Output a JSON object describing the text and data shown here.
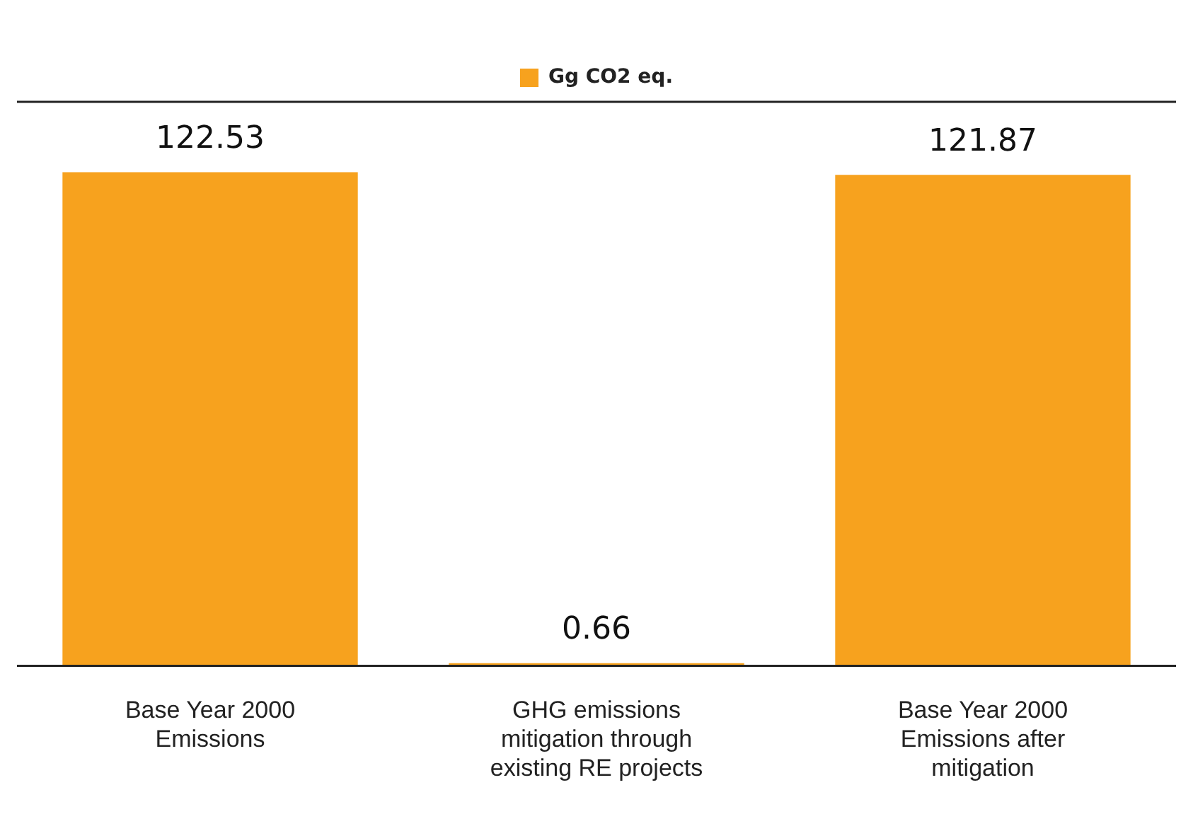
{
  "chart_data": {
    "type": "bar",
    "categories": [
      "Base Year 2000 Emissions",
      "GHG emissions mitigation through existing RE projects",
      "Base Year 2000 Emissions after mitigation"
    ],
    "series": [
      {
        "name": "Gg CO2 eq.",
        "color": "#f7a21e",
        "values": [
          122.53,
          0.66,
          121.87
        ]
      }
    ],
    "data_labels": true,
    "legend": "top"
  }
}
